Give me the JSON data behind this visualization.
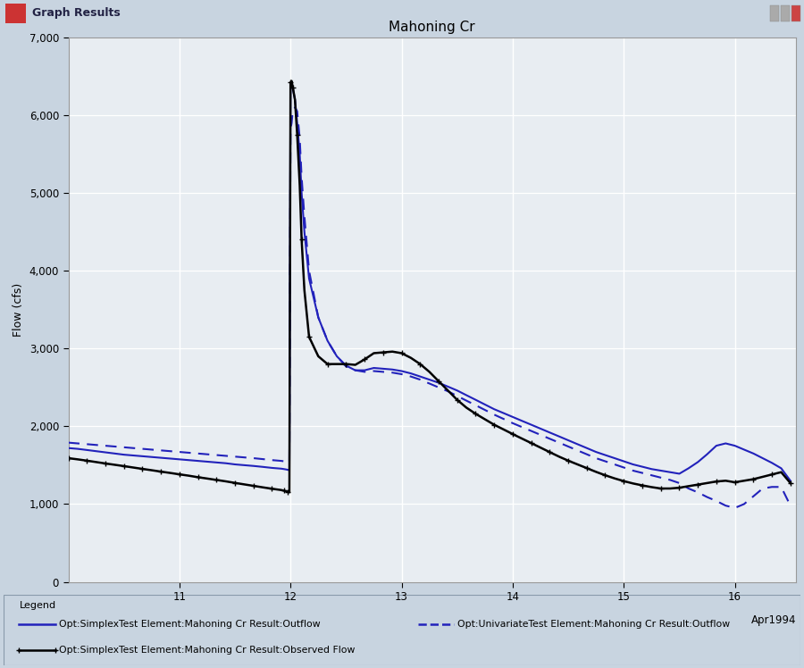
{
  "title": "Mahoning Cr",
  "ylabel": "Flow (cfs)",
  "xlabel": "Apr1994",
  "ylim": [
    0,
    7000
  ],
  "yticks": [
    0,
    1000,
    2000,
    3000,
    4000,
    5000,
    6000,
    7000
  ],
  "ytick_labels": [
    "0",
    "1,000",
    "2,000",
    "3,000",
    "4,000",
    "5,000",
    "6,000",
    "7,000"
  ],
  "bg_outer": "#c8d4e0",
  "bg_titlebar": "#aec4d8",
  "bg_plot": "#e8edf2",
  "bg_legend": "#dce4ec",
  "window_title": "Graph Results",
  "legend_title": "Legend",
  "legend_items": [
    {
      "label": "Opt:SimplexTest Element:Mahoning Cr Result:Outflow",
      "color": "#2222bb",
      "linestyle": "solid",
      "linewidth": 1.5
    },
    {
      "label": "Opt:UnivariateTest Element:Mahoning Cr Result:Outflow",
      "color": "#2222bb",
      "linestyle": "dashed",
      "linewidth": 1.5
    },
    {
      "label": "Opt:SimplexTest Element:Mahoning Cr Result:Observed Flow",
      "color": "#000000",
      "linestyle": "solid",
      "linewidth": 1.8,
      "marker": "+",
      "markersize": 5
    }
  ],
  "simplex_x": [
    10.0,
    10.083,
    10.167,
    10.25,
    10.333,
    10.417,
    10.5,
    10.583,
    10.667,
    10.75,
    10.833,
    10.917,
    11.0,
    11.083,
    11.167,
    11.25,
    11.333,
    11.417,
    11.5,
    11.583,
    11.667,
    11.75,
    11.833,
    11.917,
    11.94,
    11.96,
    11.975,
    11.99,
    12.0,
    12.01,
    12.02,
    12.04,
    12.06,
    12.083,
    12.1,
    12.125,
    12.167,
    12.25,
    12.333,
    12.417,
    12.5,
    12.583,
    12.667,
    12.75,
    12.833,
    12.917,
    13.0,
    13.083,
    13.167,
    13.25,
    13.333,
    13.417,
    13.5,
    13.583,
    13.667,
    13.75,
    13.833,
    13.917,
    14.0,
    14.083,
    14.167,
    14.25,
    14.333,
    14.417,
    14.5,
    14.583,
    14.667,
    14.75,
    14.833,
    14.917,
    15.0,
    15.083,
    15.167,
    15.25,
    15.333,
    15.417,
    15.5,
    15.583,
    15.667,
    15.75,
    15.833,
    15.917,
    16.0,
    16.083,
    16.167,
    16.25,
    16.333,
    16.417,
    16.5
  ],
  "simplex_y": [
    1720,
    1710,
    1695,
    1680,
    1665,
    1650,
    1635,
    1625,
    1615,
    1605,
    1595,
    1585,
    1575,
    1565,
    1555,
    1545,
    1535,
    1525,
    1510,
    1500,
    1490,
    1478,
    1465,
    1455,
    1450,
    1445,
    1440,
    1435,
    6380,
    6400,
    6350,
    6200,
    5900,
    5500,
    5000,
    4500,
    3900,
    3400,
    3100,
    2900,
    2780,
    2720,
    2720,
    2750,
    2740,
    2730,
    2710,
    2680,
    2640,
    2600,
    2560,
    2510,
    2460,
    2400,
    2340,
    2280,
    2220,
    2170,
    2120,
    2070,
    2020,
    1970,
    1920,
    1870,
    1820,
    1770,
    1720,
    1670,
    1630,
    1590,
    1550,
    1510,
    1480,
    1450,
    1430,
    1410,
    1390,
    1460,
    1540,
    1640,
    1750,
    1780,
    1750,
    1700,
    1650,
    1590,
    1530,
    1460,
    1300
  ],
  "univariate_x": [
    10.0,
    10.083,
    10.167,
    10.25,
    10.333,
    10.417,
    10.5,
    10.583,
    10.667,
    10.75,
    10.833,
    10.917,
    11.0,
    11.083,
    11.167,
    11.25,
    11.333,
    11.417,
    11.5,
    11.583,
    11.667,
    11.75,
    11.833,
    11.917,
    11.94,
    11.96,
    11.975,
    11.99,
    12.0,
    12.01,
    12.02,
    12.04,
    12.06,
    12.083,
    12.1,
    12.125,
    12.167,
    12.25,
    12.333,
    12.417,
    12.5,
    12.583,
    12.667,
    12.75,
    12.833,
    12.917,
    13.0,
    13.083,
    13.167,
    13.25,
    13.333,
    13.417,
    13.5,
    13.583,
    13.667,
    13.75,
    13.833,
    13.917,
    14.0,
    14.083,
    14.167,
    14.25,
    14.333,
    14.417,
    14.5,
    14.583,
    14.667,
    14.75,
    14.833,
    14.917,
    15.0,
    15.083,
    15.167,
    15.25,
    15.333,
    15.417,
    15.5,
    15.583,
    15.667,
    15.75,
    15.833,
    15.917,
    16.0,
    16.083,
    16.167,
    16.25,
    16.333,
    16.417,
    16.5
  ],
  "univariate_y": [
    1790,
    1780,
    1770,
    1760,
    1750,
    1740,
    1730,
    1720,
    1710,
    1700,
    1690,
    1680,
    1670,
    1660,
    1650,
    1640,
    1630,
    1620,
    1610,
    1600,
    1590,
    1578,
    1565,
    1555,
    1550,
    1545,
    1540,
    1535,
    5820,
    5900,
    6050,
    6100,
    6050,
    5700,
    5200,
    4700,
    4000,
    3400,
    3100,
    2900,
    2770,
    2720,
    2700,
    2710,
    2700,
    2690,
    2670,
    2640,
    2600,
    2550,
    2500,
    2450,
    2390,
    2330,
    2270,
    2210,
    2150,
    2095,
    2040,
    1990,
    1940,
    1890,
    1840,
    1790,
    1740,
    1690,
    1640,
    1590,
    1550,
    1510,
    1470,
    1430,
    1400,
    1370,
    1340,
    1310,
    1270,
    1200,
    1150,
    1090,
    1040,
    980,
    950,
    1000,
    1100,
    1200,
    1220,
    1220,
    980
  ],
  "observed_x": [
    10.0,
    10.083,
    10.167,
    10.25,
    10.333,
    10.417,
    10.5,
    10.583,
    10.667,
    10.75,
    10.833,
    10.917,
    11.0,
    11.083,
    11.167,
    11.25,
    11.333,
    11.417,
    11.5,
    11.583,
    11.667,
    11.75,
    11.833,
    11.917,
    11.94,
    11.96,
    11.975,
    11.99,
    12.0,
    12.01,
    12.02,
    12.04,
    12.06,
    12.083,
    12.1,
    12.125,
    12.167,
    12.25,
    12.333,
    12.417,
    12.5,
    12.583,
    12.667,
    12.75,
    12.833,
    12.917,
    13.0,
    13.083,
    13.167,
    13.25,
    13.333,
    13.417,
    13.5,
    13.583,
    13.667,
    13.75,
    13.833,
    13.917,
    14.0,
    14.083,
    14.167,
    14.25,
    14.333,
    14.417,
    14.5,
    14.583,
    14.667,
    14.75,
    14.833,
    14.917,
    15.0,
    15.083,
    15.167,
    15.25,
    15.333,
    15.417,
    15.5,
    15.583,
    15.667,
    15.75,
    15.833,
    15.917,
    16.0,
    16.083,
    16.167,
    16.25,
    16.333,
    16.417,
    16.5
  ],
  "observed_y": [
    1590,
    1575,
    1558,
    1540,
    1522,
    1505,
    1488,
    1470,
    1452,
    1435,
    1417,
    1400,
    1382,
    1365,
    1345,
    1328,
    1310,
    1292,
    1272,
    1253,
    1234,
    1215,
    1197,
    1180,
    1172,
    1165,
    1158,
    1152,
    6420,
    6440,
    6360,
    6200,
    5750,
    5100,
    4400,
    3750,
    3150,
    2900,
    2800,
    2800,
    2800,
    2790,
    2860,
    2940,
    2950,
    2960,
    2940,
    2880,
    2800,
    2700,
    2580,
    2460,
    2340,
    2240,
    2160,
    2090,
    2020,
    1960,
    1900,
    1842,
    1784,
    1726,
    1668,
    1610,
    1558,
    1510,
    1462,
    1414,
    1370,
    1330,
    1295,
    1265,
    1240,
    1218,
    1200,
    1200,
    1210,
    1230,
    1250,
    1270,
    1290,
    1300,
    1280,
    1300,
    1320,
    1350,
    1380,
    1410,
    1270
  ]
}
